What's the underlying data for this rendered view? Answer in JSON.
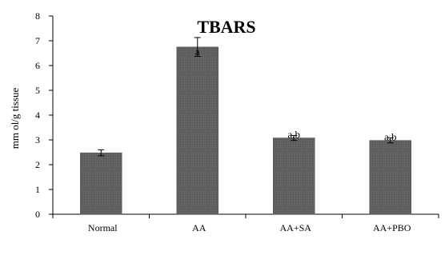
{
  "chart_data": {
    "type": "bar",
    "title": "TBARS",
    "xlabel": "",
    "ylabel": "mm ol/g tissue",
    "categories": [
      "Normal",
      "AA",
      "AA+SA",
      "AA+PBO"
    ],
    "values": [
      2.48,
      6.75,
      3.08,
      2.98
    ],
    "errors": [
      0.12,
      0.38,
      0.1,
      0.1
    ],
    "annotations": [
      "",
      "a",
      "a,b",
      "a,b"
    ],
    "ylim": [
      0,
      8
    ],
    "yticks": [
      "0",
      "1",
      "2",
      "3",
      "4",
      "5",
      "6",
      "7",
      "8"
    ],
    "grid": false,
    "bar_color": "#5f5f5f"
  }
}
